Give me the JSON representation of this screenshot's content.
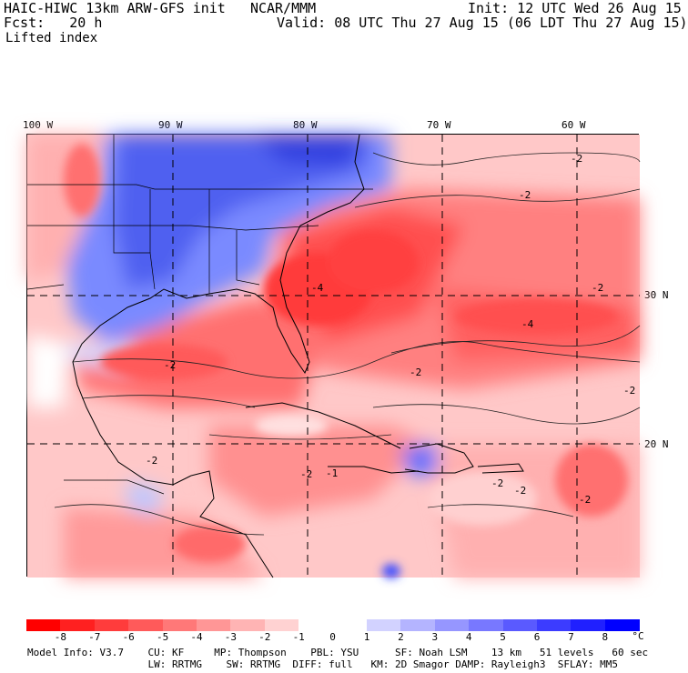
{
  "header": {
    "model": "HAIC-HIWC 13km ARW-GFS init",
    "center": "NCAR/MMM",
    "init": "Init: 12 UTC Wed 26 Aug 15",
    "fcst_label": "Fcst:",
    "fcst_value": "20 h",
    "valid": "Valid: 08 UTC Thu 27 Aug 15 (06 LDT Thu 27 Aug 15)",
    "field": "Lifted index"
  },
  "map": {
    "lon_labels": [
      "100 W",
      "90 W",
      "80 W",
      "70 W",
      "60 W"
    ],
    "lat_labels": [
      "30 N",
      "20 N"
    ],
    "contour_labels": [
      "-2",
      "-2",
      "-4",
      "-2",
      "-2",
      "-4",
      "-2",
      "-2",
      "-1",
      "-2",
      "-2",
      "-2",
      "-2",
      "-2"
    ]
  },
  "colorbar": {
    "labels": [
      "-8",
      "-7",
      "-6",
      "-5",
      "-4",
      "-3",
      "-2",
      "-1",
      "0",
      "1",
      "2",
      "3",
      "4",
      "5",
      "6",
      "7",
      "8"
    ],
    "unit": "°C",
    "colors": [
      "#ff0000",
      "#ff2020",
      "#ff3c3c",
      "#ff5a5a",
      "#ff7878",
      "#ff9696",
      "#ffb4b4",
      "#ffd2d2",
      "#ffffff",
      "#ffffff",
      "#d2d2ff",
      "#b4b4ff",
      "#9696ff",
      "#7878ff",
      "#5a5aff",
      "#3c3cff",
      "#2020ff",
      "#0000ff"
    ]
  },
  "footer": {
    "line1": "Model Info: V3.7    CU: KF     MP: Thompson    PBL: YSU      SF: Noah LSM    13 km   51 levels   60 sec",
    "line2": "                    LW: RRTMG    SW: RRTMG  DIFF: full   KM: 2D Smagor DAMP: Rayleigh3  SFLAY: MM5"
  }
}
